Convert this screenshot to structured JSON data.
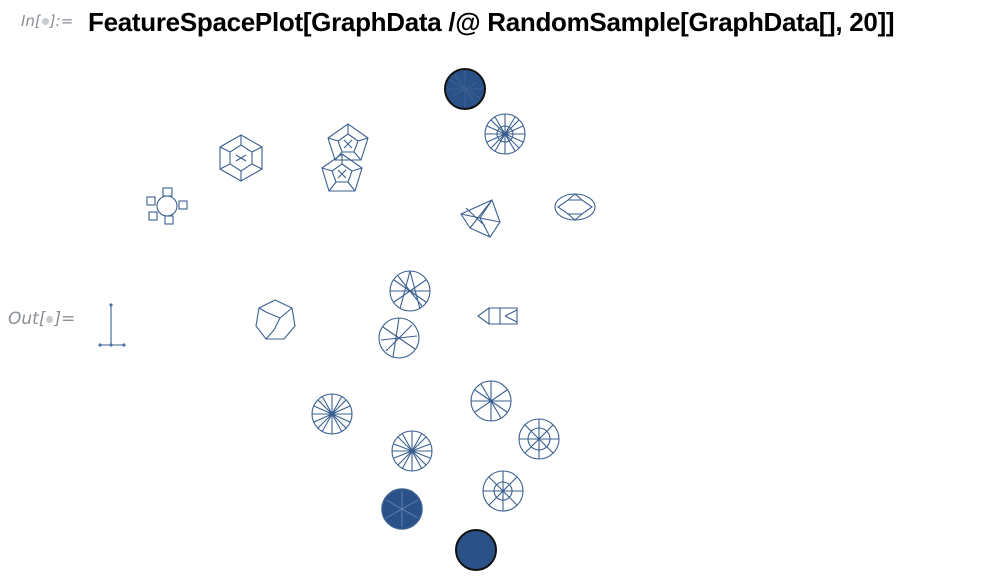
{
  "notebook": {
    "in_label_prefix": "In[",
    "in_label_suffix": "]:=",
    "out_label_prefix": "Out[",
    "out_label_suffix": "]=",
    "input_code": "FeatureSpacePlot[GraphData /@ RandomSample[GraphData[], 20]]"
  },
  "output": {
    "kind": "feature-space-plot",
    "item_count": 20,
    "accent_color": "#3b5f8f",
    "dense_fill_color": "#2b5288"
  }
}
